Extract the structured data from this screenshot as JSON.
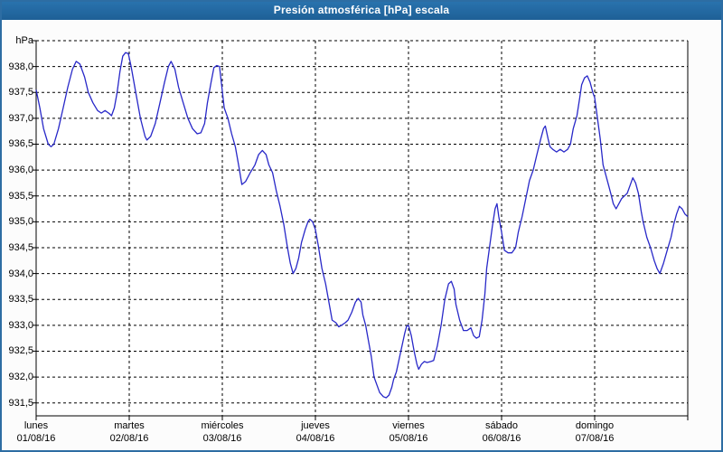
{
  "window": {
    "title": "Presión atmosférica [hPa] escala"
  },
  "colors": {
    "titlebar": "#2268a2",
    "titlebar_text": "#ffffff",
    "window_border": "#2d6da3",
    "background": "#fcfcfc",
    "plot_background": "#ffffff",
    "line": "#2828c8",
    "grid": "#000000",
    "label_text": "#000000"
  },
  "chart_data": {
    "type": "line",
    "title": "Presión atmosférica [hPa] escala",
    "unit_label": "hPa",
    "xlabel": "",
    "ylabel": "hPa",
    "ylim": [
      931.25,
      938.5
    ],
    "xlim_days": [
      0,
      7
    ],
    "grid": "dashed",
    "legend_position": "none",
    "y_gridlines": [
      938.5,
      938.0,
      937.5,
      937.0,
      936.5,
      936.0,
      935.5,
      935.0,
      934.5,
      934.0,
      933.5,
      933.0,
      932.5,
      932.0,
      931.5
    ],
    "y_ticks": [
      {
        "v": 938.0,
        "label": "938,0"
      },
      {
        "v": 937.5,
        "label": "937,5"
      },
      {
        "v": 937.0,
        "label": "937,0"
      },
      {
        "v": 936.5,
        "label": "936,5"
      },
      {
        "v": 936.0,
        "label": "936,0"
      },
      {
        "v": 935.5,
        "label": "935,5"
      },
      {
        "v": 935.0,
        "label": "935,0"
      },
      {
        "v": 934.5,
        "label": "934,5"
      },
      {
        "v": 934.0,
        "label": "934,0"
      },
      {
        "v": 933.5,
        "label": "933,5"
      },
      {
        "v": 933.0,
        "label": "933,0"
      },
      {
        "v": 932.5,
        "label": "932,5"
      },
      {
        "v": 932.0,
        "label": "932,0"
      },
      {
        "v": 931.5,
        "label": "931,5"
      }
    ],
    "x_ticks": [
      {
        "t": 0,
        "day": "lunes",
        "date": "01/08/16"
      },
      {
        "t": 1,
        "day": "martes",
        "date": "02/08/16"
      },
      {
        "t": 2,
        "day": "miércoles",
        "date": "03/08/16"
      },
      {
        "t": 3,
        "day": "jueves",
        "date": "04/08/16"
      },
      {
        "t": 4,
        "day": "viernes",
        "date": "05/08/16"
      },
      {
        "t": 5,
        "day": "sábado",
        "date": "06/08/16"
      },
      {
        "t": 6,
        "day": "domingo",
        "date": "07/08/16"
      }
    ],
    "points": [
      [
        0.0,
        937.55
      ],
      [
        0.04,
        937.2
      ],
      [
        0.08,
        936.8
      ],
      [
        0.13,
        936.5
      ],
      [
        0.16,
        936.45
      ],
      [
        0.19,
        936.5
      ],
      [
        0.24,
        936.8
      ],
      [
        0.29,
        937.2
      ],
      [
        0.34,
        937.6
      ],
      [
        0.39,
        937.95
      ],
      [
        0.43,
        938.1
      ],
      [
        0.47,
        938.05
      ],
      [
        0.52,
        937.8
      ],
      [
        0.56,
        937.5
      ],
      [
        0.61,
        937.3
      ],
      [
        0.66,
        937.15
      ],
      [
        0.7,
        937.1
      ],
      [
        0.74,
        937.15
      ],
      [
        0.78,
        937.1
      ],
      [
        0.81,
        937.05
      ],
      [
        0.84,
        937.2
      ],
      [
        0.87,
        937.5
      ],
      [
        0.9,
        937.9
      ],
      [
        0.93,
        938.2
      ],
      [
        0.96,
        938.27
      ],
      [
        0.99,
        938.25
      ],
      [
        1.02,
        938.0
      ],
      [
        1.07,
        937.5
      ],
      [
        1.12,
        937.0
      ],
      [
        1.17,
        936.65
      ],
      [
        1.19,
        936.58
      ],
      [
        1.23,
        936.65
      ],
      [
        1.28,
        936.9
      ],
      [
        1.33,
        937.3
      ],
      [
        1.38,
        937.7
      ],
      [
        1.42,
        938.0
      ],
      [
        1.45,
        938.1
      ],
      [
        1.49,
        937.95
      ],
      [
        1.53,
        937.6
      ],
      [
        1.58,
        937.3
      ],
      [
        1.63,
        937.0
      ],
      [
        1.68,
        936.8
      ],
      [
        1.73,
        936.7
      ],
      [
        1.77,
        936.72
      ],
      [
        1.81,
        936.9
      ],
      [
        1.84,
        937.3
      ],
      [
        1.88,
        937.7
      ],
      [
        1.91,
        937.98
      ],
      [
        1.94,
        938.02
      ],
      [
        1.97,
        938.0
      ],
      [
        2.02,
        937.2
      ],
      [
        2.06,
        937.0
      ],
      [
        2.1,
        936.7
      ],
      [
        2.14,
        936.45
      ],
      [
        2.18,
        936.05
      ],
      [
        2.21,
        935.72
      ],
      [
        2.25,
        935.78
      ],
      [
        2.3,
        935.95
      ],
      [
        2.35,
        936.1
      ],
      [
        2.39,
        936.3
      ],
      [
        2.43,
        936.38
      ],
      [
        2.47,
        936.3
      ],
      [
        2.5,
        936.1
      ],
      [
        2.54,
        935.95
      ],
      [
        2.58,
        935.6
      ],
      [
        2.62,
        935.3
      ],
      [
        2.66,
        934.95
      ],
      [
        2.7,
        934.5
      ],
      [
        2.73,
        934.2
      ],
      [
        2.76,
        934.0
      ],
      [
        2.79,
        934.1
      ],
      [
        2.82,
        934.3
      ],
      [
        2.85,
        934.6
      ],
      [
        2.89,
        934.85
      ],
      [
        2.92,
        935.0
      ],
      [
        2.94,
        935.05
      ],
      [
        2.97,
        935.0
      ],
      [
        3.0,
        934.85
      ],
      [
        3.03,
        934.55
      ],
      [
        3.07,
        934.1
      ],
      [
        3.11,
        933.8
      ],
      [
        3.14,
        933.5
      ],
      [
        3.18,
        933.1
      ],
      [
        3.22,
        933.05
      ],
      [
        3.25,
        932.97
      ],
      [
        3.28,
        933.0
      ],
      [
        3.32,
        933.05
      ],
      [
        3.35,
        933.1
      ],
      [
        3.39,
        933.25
      ],
      [
        3.43,
        933.45
      ],
      [
        3.46,
        933.52
      ],
      [
        3.49,
        933.45
      ],
      [
        3.51,
        933.2
      ],
      [
        3.54,
        933.0
      ],
      [
        3.57,
        932.7
      ],
      [
        3.6,
        932.4
      ],
      [
        3.63,
        932.0
      ],
      [
        3.66,
        931.85
      ],
      [
        3.69,
        931.7
      ],
      [
        3.73,
        931.62
      ],
      [
        3.76,
        931.6
      ],
      [
        3.79,
        931.65
      ],
      [
        3.82,
        931.8
      ],
      [
        3.84,
        931.95
      ],
      [
        3.87,
        932.1
      ],
      [
        3.9,
        932.35
      ],
      [
        3.93,
        932.6
      ],
      [
        3.96,
        932.85
      ],
      [
        3.98,
        932.98
      ],
      [
        4.0,
        933.0
      ],
      [
        4.03,
        932.8
      ],
      [
        4.06,
        932.5
      ],
      [
        4.09,
        932.25
      ],
      [
        4.11,
        932.15
      ],
      [
        4.14,
        932.25
      ],
      [
        4.17,
        932.3
      ],
      [
        4.2,
        932.28
      ],
      [
        4.24,
        932.3
      ],
      [
        4.27,
        932.32
      ],
      [
        4.31,
        932.6
      ],
      [
        4.35,
        933.0
      ],
      [
        4.39,
        933.5
      ],
      [
        4.43,
        933.8
      ],
      [
        4.46,
        933.85
      ],
      [
        4.49,
        933.7
      ],
      [
        4.51,
        933.4
      ],
      [
        4.55,
        933.1
      ],
      [
        4.59,
        932.9
      ],
      [
        4.63,
        932.9
      ],
      [
        4.67,
        932.95
      ],
      [
        4.7,
        932.8
      ],
      [
        4.73,
        932.75
      ],
      [
        4.76,
        932.78
      ],
      [
        4.79,
        933.1
      ],
      [
        4.82,
        933.6
      ],
      [
        4.84,
        934.1
      ],
      [
        4.87,
        934.5
      ],
      [
        4.9,
        934.9
      ],
      [
        4.93,
        935.25
      ],
      [
        4.95,
        935.35
      ],
      [
        4.97,
        935.1
      ],
      [
        5.0,
        934.8
      ],
      [
        5.03,
        934.45
      ],
      [
        5.07,
        934.4
      ],
      [
        5.11,
        934.4
      ],
      [
        5.15,
        934.5
      ],
      [
        5.18,
        934.8
      ],
      [
        5.22,
        935.1
      ],
      [
        5.26,
        935.45
      ],
      [
        5.3,
        935.8
      ],
      [
        5.34,
        936.0
      ],
      [
        5.38,
        936.3
      ],
      [
        5.42,
        936.6
      ],
      [
        5.45,
        936.8
      ],
      [
        5.47,
        936.85
      ],
      [
        5.5,
        936.6
      ],
      [
        5.52,
        936.45
      ],
      [
        5.55,
        936.4
      ],
      [
        5.59,
        936.35
      ],
      [
        5.63,
        936.4
      ],
      [
        5.67,
        936.35
      ],
      [
        5.71,
        936.4
      ],
      [
        5.74,
        936.5
      ],
      [
        5.77,
        936.8
      ],
      [
        5.81,
        937.05
      ],
      [
        5.84,
        937.4
      ],
      [
        5.86,
        937.65
      ],
      [
        5.89,
        937.78
      ],
      [
        5.92,
        937.82
      ],
      [
        5.95,
        937.7
      ],
      [
        5.98,
        937.5
      ],
      [
        6.0,
        937.4
      ],
      [
        6.03,
        937.0
      ],
      [
        6.06,
        936.6
      ],
      [
        6.09,
        936.1
      ],
      [
        6.12,
        935.9
      ],
      [
        6.15,
        935.7
      ],
      [
        6.18,
        935.5
      ],
      [
        6.2,
        935.35
      ],
      [
        6.23,
        935.25
      ],
      [
        6.26,
        935.35
      ],
      [
        6.29,
        935.45
      ],
      [
        6.32,
        935.5
      ],
      [
        6.35,
        935.55
      ],
      [
        6.38,
        935.7
      ],
      [
        6.41,
        935.85
      ],
      [
        6.44,
        935.75
      ],
      [
        6.47,
        935.55
      ],
      [
        6.5,
        935.2
      ],
      [
        6.52,
        935.0
      ],
      [
        6.56,
        934.7
      ],
      [
        6.6,
        934.5
      ],
      [
        6.64,
        934.25
      ],
      [
        6.67,
        934.1
      ],
      [
        6.7,
        934.0
      ],
      [
        6.74,
        934.2
      ],
      [
        6.78,
        934.45
      ],
      [
        6.82,
        934.7
      ],
      [
        6.85,
        934.95
      ],
      [
        6.88,
        935.15
      ],
      [
        6.91,
        935.3
      ],
      [
        6.94,
        935.25
      ],
      [
        6.97,
        935.15
      ],
      [
        7.0,
        935.1
      ]
    ]
  }
}
